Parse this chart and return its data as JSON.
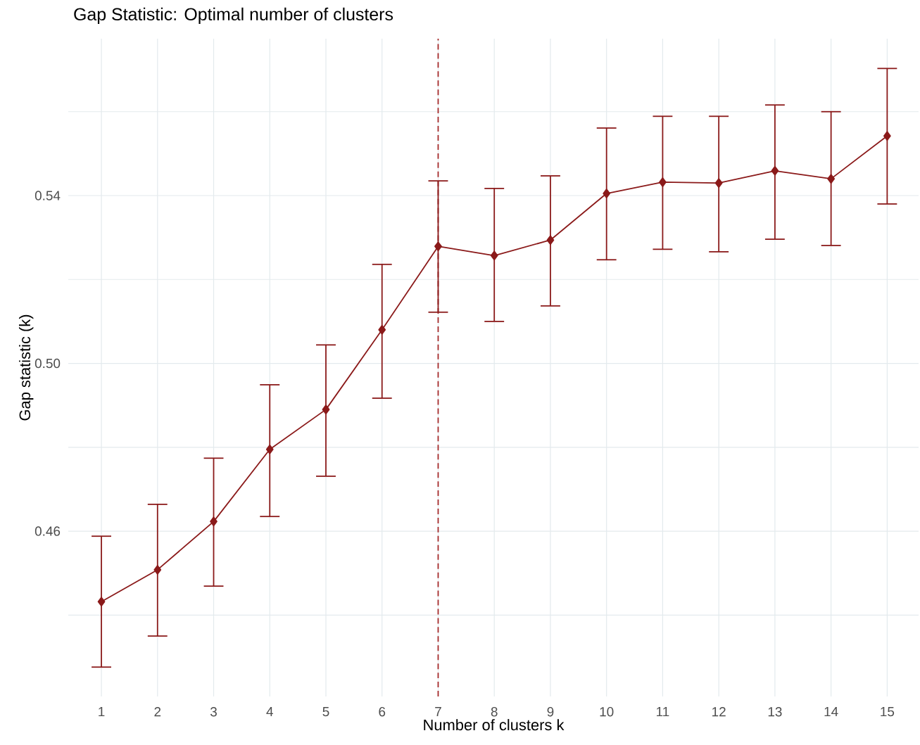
{
  "chart_data": {
    "type": "line",
    "title": "Gap Statistic: Optimal number of clusters",
    "xlabel": "Number of clusters k",
    "ylabel": "Gap statistic (k)",
    "x": [
      1,
      2,
      3,
      4,
      5,
      6,
      7,
      8,
      9,
      10,
      11,
      12,
      13,
      14,
      15
    ],
    "series": [
      {
        "color": "#8b1a1a",
        "values": [
          0.4432,
          0.4508,
          0.4623,
          0.4795,
          0.489,
          0.508,
          0.5279,
          0.5257,
          0.5294,
          0.5405,
          0.5432,
          0.543,
          0.5459,
          0.544,
          0.5542
        ],
        "errors": [
          [
            0.4276,
            0.4588
          ],
          [
            0.435,
            0.4664
          ],
          [
            0.4469,
            0.4774
          ],
          [
            0.4635,
            0.4949
          ],
          [
            0.4731,
            0.5044
          ],
          [
            0.4917,
            0.5236
          ],
          [
            0.5122,
            0.5435
          ],
          [
            0.51,
            0.5417
          ],
          [
            0.5137,
            0.5447
          ],
          [
            0.5247,
            0.5561
          ],
          [
            0.5272,
            0.5589
          ],
          [
            0.5266,
            0.5589
          ],
          [
            0.5296,
            0.5616
          ],
          [
            0.5281,
            0.56
          ],
          [
            0.538,
            0.5703
          ]
        ]
      }
    ],
    "xlim": [
      0.41,
      15.56
    ],
    "ylim": [
      0.4206,
      0.5774
    ],
    "xticks": [
      1,
      2,
      3,
      4,
      5,
      6,
      7,
      8,
      9,
      10,
      11,
      12,
      13,
      14,
      15
    ],
    "yticks": [
      {
        "value": 0.44,
        "label": null
      },
      0.46,
      {
        "value": 0.48,
        "label": null
      },
      {
        "value": 0.5,
        "label": "0.50"
      },
      {
        "value": 0.52,
        "label": null
      },
      0.54,
      {
        "value": 0.56,
        "label": null
      }
    ],
    "ref_lines": [
      {
        "axis": "x",
        "value": 7,
        "color": "#a52a2a",
        "line_style": "dashed"
      }
    ],
    "grid": true,
    "marker": "diamond",
    "line_style": "solid"
  }
}
